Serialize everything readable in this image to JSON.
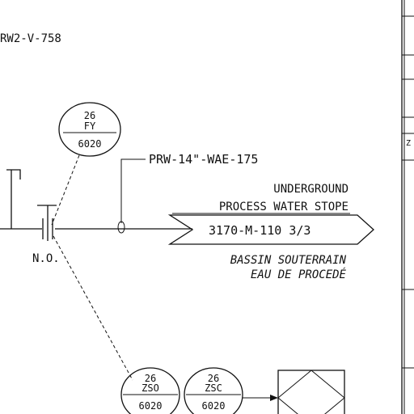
{
  "drawing": {
    "top_line_tag": "RW2-V-758",
    "pipe_tag": "PRW-14\"-WAE-175",
    "valve_state": "N.O.",
    "instruments": {
      "fy": {
        "number": "26",
        "letters": "FY",
        "loop": "6020"
      },
      "zso": {
        "number": "26",
        "letters": "ZSO",
        "loop": "6020"
      },
      "zsc": {
        "number": "26",
        "letters": "ZSC",
        "loop": "6020"
      }
    },
    "offpage": {
      "destination_line1": "UNDERGROUND",
      "destination_line2": "PROCESS WATER STOPE",
      "reference": "3170-M-110 3/3",
      "destination_fr_line1": "BASSIN SOUTERRAIN",
      "destination_fr_line2": "EAU DE PROCEDÉ"
    },
    "side_fragment": "Z"
  },
  "colors": {
    "ink": "#111111",
    "paper": "#ffffff"
  }
}
